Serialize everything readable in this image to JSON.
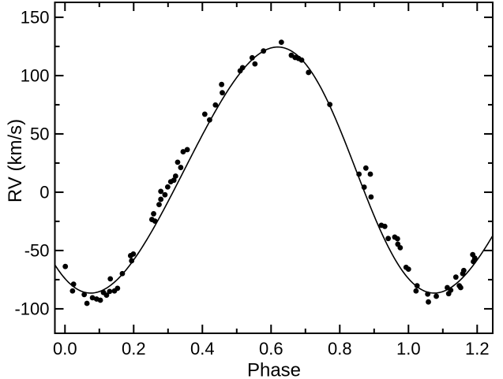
{
  "chart_data": {
    "type": "scatter",
    "title": "",
    "xlabel": "Phase",
    "ylabel": "RV (km/s)",
    "xlim": [
      -0.0294,
      1.2453
    ],
    "ylim": [
      -121.0,
      162.8
    ],
    "grid": false,
    "legend": false,
    "frame": "box-with-inward-ticks",
    "x_ticks": {
      "major": [
        0.0,
        0.2,
        0.4,
        0.6,
        0.8,
        1.0,
        1.2
      ],
      "major_labels": [
        "0.0",
        "0.2",
        "0.4",
        "0.6",
        "0.8",
        "1.0",
        "1.2"
      ],
      "minor": [
        0.1,
        0.3,
        0.5,
        0.7,
        0.9,
        1.1
      ]
    },
    "y_ticks": {
      "major": [
        -100,
        -50,
        0,
        50,
        100,
        150
      ],
      "major_labels": [
        "-100",
        "-50",
        "0",
        "50",
        "100",
        "150"
      ],
      "minor": [
        -75,
        -25,
        25,
        75,
        125
      ]
    },
    "marker": {
      "shape": "filled-circle",
      "radius_px": 3.4,
      "color": "#000000"
    },
    "fit_curve": {
      "model": "keplerian-rv",
      "gamma_kms": 19,
      "K_kms": 105.5,
      "eccentricity": 0.07,
      "omega_deg": 90,
      "mean_anomaly_phase_offset": 0.1528,
      "rv_min_kms": -86.5,
      "rv_min_phase": 0.075,
      "rv_max_kms": 124.5,
      "rv_max_phase": 0.62,
      "color": "#000000",
      "stroke_px": 1.6
    },
    "points": [
      [
        0.001,
        -63.7
      ],
      [
        0.022,
        -84.7
      ],
      [
        0.025,
        -78.9
      ],
      [
        0.056,
        -87.8
      ],
      [
        0.064,
        -95.3
      ],
      [
        0.08,
        -90.5
      ],
      [
        0.092,
        -91.6
      ],
      [
        0.103,
        -92.6
      ],
      [
        0.112,
        -86.0
      ],
      [
        0.121,
        -88.3
      ],
      [
        0.13,
        -85.1
      ],
      [
        0.132,
        -74.3
      ],
      [
        0.144,
        -84.7
      ],
      [
        0.153,
        -82.4
      ],
      [
        0.167,
        -69.8
      ],
      [
        0.191,
        -54.4
      ],
      [
        0.194,
        -58.8
      ],
      [
        0.199,
        -53.0
      ],
      [
        0.253,
        -23.4
      ],
      [
        0.258,
        -18.5
      ],
      [
        0.262,
        -24.8
      ],
      [
        0.274,
        -10.6
      ],
      [
        0.279,
        -6.1
      ],
      [
        0.279,
        0.7
      ],
      [
        0.291,
        -2.2
      ],
      [
        0.299,
        4.5
      ],
      [
        0.308,
        9.0
      ],
      [
        0.317,
        10.3
      ],
      [
        0.322,
        13.8
      ],
      [
        0.328,
        25.7
      ],
      [
        0.337,
        21.2
      ],
      [
        0.344,
        34.7
      ],
      [
        0.356,
        36.5
      ],
      [
        0.407,
        66.9
      ],
      [
        0.421,
        62.0
      ],
      [
        0.438,
        74.8
      ],
      [
        0.456,
        92.4
      ],
      [
        0.458,
        85.3
      ],
      [
        0.51,
        104.1
      ],
      [
        0.517,
        106.8
      ],
      [
        0.545,
        115.3
      ],
      [
        0.553,
        110.0
      ],
      [
        0.578,
        121.1
      ],
      [
        0.63,
        128.6
      ],
      [
        0.659,
        117.4
      ],
      [
        0.67,
        115.5
      ],
      [
        0.68,
        114.7
      ],
      [
        0.689,
        113.3
      ],
      [
        0.709,
        102.7
      ],
      [
        0.771,
        75.2
      ],
      [
        0.856,
        15.5
      ],
      [
        0.871,
        4.3
      ],
      [
        0.876,
        20.7
      ],
      [
        0.889,
        15.5
      ],
      [
        0.891,
        -4.1
      ],
      [
        0.921,
        -28.4
      ],
      [
        0.931,
        -29.3
      ],
      [
        0.941,
        -39.7
      ],
      [
        0.96,
        -38.5
      ],
      [
        0.968,
        -39.9
      ],
      [
        0.969,
        -44.6
      ],
      [
        0.976,
        -47.6
      ],
      [
        0.993,
        -64.4
      ],
      [
        1.0,
        -66.0
      ],
      [
        1.022,
        -84.7
      ],
      [
        1.025,
        -80.2
      ],
      [
        1.056,
        -87.4
      ],
      [
        1.058,
        -94.1
      ],
      [
        1.081,
        -89.2
      ],
      [
        1.113,
        -81.8
      ],
      [
        1.117,
        -87.0
      ],
      [
        1.123,
        -84.0
      ],
      [
        1.138,
        -72.8
      ],
      [
        1.148,
        -80.2
      ],
      [
        1.152,
        -81.8
      ],
      [
        1.158,
        -69.8
      ],
      [
        1.161,
        -67.1
      ],
      [
        1.187,
        -53.5
      ],
      [
        1.189,
        -59.5
      ],
      [
        1.193,
        -56.5
      ]
    ]
  },
  "colors": {
    "background": "#ffffff",
    "foreground": "#000000"
  }
}
